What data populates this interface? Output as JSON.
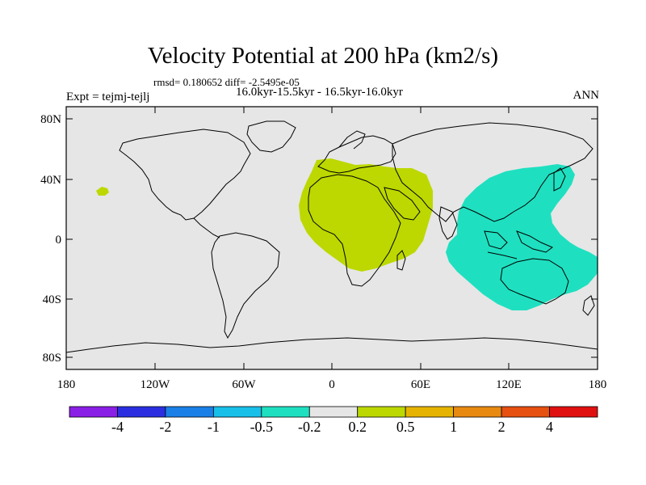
{
  "title": "Velocity Potential at 200 hPa (km2/s)",
  "stats": "rmsd= 0.180652 diff= -2.5495e-05",
  "experiment": "Expt = tejmj-tejlj",
  "period": "16.0kyr-15.5kyr - 16.5kyr-16.0kyr",
  "season": "ANN",
  "lat_ticks": [
    "80N",
    "40N",
    "0",
    "40S",
    "80S"
  ],
  "lon_ticks": [
    "180",
    "120W",
    "60W",
    "0",
    "60E",
    "120E",
    "180"
  ],
  "colorbar": {
    "colors": [
      "#8a1fe6",
      "#2a2ee0",
      "#1a7fe6",
      "#18bfe8",
      "#1ee0c0",
      "#e6e6e6",
      "#bcd800",
      "#e6b400",
      "#e88a10",
      "#e65010",
      "#e01010"
    ],
    "labels": [
      "-4",
      "-2",
      "-1",
      "-0.5",
      "-0.2",
      "0.2",
      "0.5",
      "1",
      "2",
      "4"
    ]
  },
  "anomalies": [
    {
      "name": "africa-positive",
      "range": "0.2 to 0.5",
      "color": "#bcd800"
    },
    {
      "name": "pacific-islet-positive",
      "range": "0.2 to 0.5",
      "color": "#bcd800"
    },
    {
      "name": "indo-pacific-negative",
      "range": "-0.5 to -0.2",
      "color": "#1ee0c0"
    }
  ]
}
